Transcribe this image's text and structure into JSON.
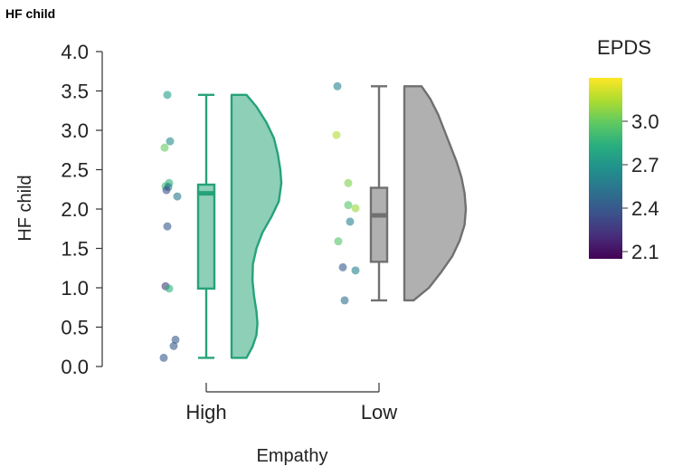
{
  "chart_data": {
    "type": "raincloud",
    "title": "HF child",
    "xlabel": "Empathy",
    "ylabel": "HF child",
    "ylim": [
      0,
      4
    ],
    "yticks": [
      "0.0",
      "0.5",
      "1.0",
      "1.5",
      "2.0",
      "2.5",
      "3.0",
      "3.5",
      "4.0"
    ],
    "categories": [
      "High",
      "Low"
    ],
    "groups": [
      {
        "name": "High",
        "color": "#26a27b",
        "fill": "#8ecfb7",
        "box": {
          "min": 0.11,
          "q1": 0.99,
          "median": 2.2,
          "q3": 2.31,
          "max": 3.45
        },
        "points": [
          {
            "y": 3.45,
            "epds": 2.75
          },
          {
            "y": 2.86,
            "epds": 2.65
          },
          {
            "y": 2.78,
            "epds": 3.0
          },
          {
            "y": 2.33,
            "epds": 2.85
          },
          {
            "y": 2.29,
            "epds": 2.9
          },
          {
            "y": 2.28,
            "epds": 2.55
          },
          {
            "y": 2.24,
            "epds": 2.35
          },
          {
            "y": 2.16,
            "epds": 2.55
          },
          {
            "y": 1.78,
            "epds": 2.4
          },
          {
            "y": 1.02,
            "epds": 2.25
          },
          {
            "y": 0.99,
            "epds": 2.85
          },
          {
            "y": 0.34,
            "epds": 2.4
          },
          {
            "y": 0.26,
            "epds": 2.4
          },
          {
            "y": 0.11,
            "epds": 2.4
          }
        ],
        "density": [
          [
            3.45,
            0.3
          ],
          [
            3.3,
            0.5
          ],
          [
            3.1,
            0.7
          ],
          [
            2.9,
            0.85
          ],
          [
            2.7,
            0.93
          ],
          [
            2.5,
            0.98
          ],
          [
            2.33,
            1.0
          ],
          [
            2.1,
            0.95
          ],
          [
            1.9,
            0.8
          ],
          [
            1.7,
            0.62
          ],
          [
            1.5,
            0.5
          ],
          [
            1.3,
            0.43
          ],
          [
            1.1,
            0.42
          ],
          [
            0.9,
            0.45
          ],
          [
            0.7,
            0.5
          ],
          [
            0.55,
            0.52
          ],
          [
            0.4,
            0.5
          ],
          [
            0.25,
            0.42
          ],
          [
            0.11,
            0.3
          ]
        ]
      },
      {
        "name": "Low",
        "color": "#707070",
        "fill": "#b0b0b0",
        "box": {
          "min": 0.84,
          "q1": 1.33,
          "median": 1.92,
          "q3": 2.27,
          "max": 3.56
        },
        "points": [
          {
            "y": 3.56,
            "epds": 2.6
          },
          {
            "y": 2.94,
            "epds": 3.15
          },
          {
            "y": 2.33,
            "epds": 3.05
          },
          {
            "y": 2.05,
            "epds": 2.95
          },
          {
            "y": 2.01,
            "epds": 3.1
          },
          {
            "y": 1.84,
            "epds": 2.6
          },
          {
            "y": 1.59,
            "epds": 2.95
          },
          {
            "y": 1.26,
            "epds": 2.4
          },
          {
            "y": 1.22,
            "epds": 2.6
          },
          {
            "y": 0.84,
            "epds": 2.5
          }
        ],
        "density": [
          [
            3.56,
            0.28
          ],
          [
            3.4,
            0.42
          ],
          [
            3.2,
            0.55
          ],
          [
            3.0,
            0.65
          ],
          [
            2.8,
            0.75
          ],
          [
            2.6,
            0.85
          ],
          [
            2.4,
            0.93
          ],
          [
            2.2,
            0.98
          ],
          [
            2.0,
            1.0
          ],
          [
            1.8,
            0.98
          ],
          [
            1.6,
            0.9
          ],
          [
            1.4,
            0.78
          ],
          [
            1.2,
            0.6
          ],
          [
            1.0,
            0.4
          ],
          [
            0.84,
            0.15
          ]
        ]
      }
    ],
    "colorbar": {
      "title": "EPDS",
      "min": 2.05,
      "max": 3.3,
      "ticks": [
        "2.1",
        "2.4",
        "2.7",
        "3.0"
      ]
    }
  }
}
